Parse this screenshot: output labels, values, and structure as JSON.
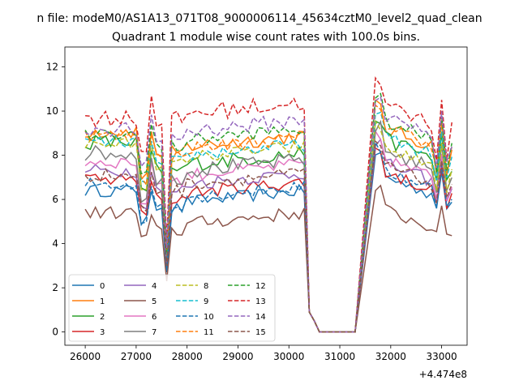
{
  "figure": {
    "suptitle": "n file: modeM0/AS1A13_071T08_9000006114_45634cztM0_level2_quad_clean",
    "title": "Quadrant 1 module wise count rates with 100.0s bins.",
    "offset_text": "+4.474e8"
  },
  "chart_data": {
    "type": "line",
    "title": "Quadrant 1 module wise count rates with 100.0s bins.",
    "xlabel": "",
    "ylabel": "",
    "x_offset": 447400000,
    "xlim": [
      25600,
      33500
    ],
    "ylim": [
      -0.6,
      12.9
    ],
    "xticks": [
      26000,
      27000,
      28000,
      29000,
      30000,
      31000,
      32000,
      33000
    ],
    "yticks": [
      0,
      2,
      4,
      6,
      8,
      10,
      12
    ],
    "legend": {
      "placement": "lower-left",
      "columns": 4
    },
    "grid": false,
    "gap": {
      "start": 30300,
      "end": 31700,
      "first_low_x": 30400,
      "first_low_value": 0.9,
      "second_low_x": 30500,
      "second_low_value": 0.5,
      "zero_start": 30600,
      "zero_end": 31300,
      "rise_x": 31700,
      "rise_x2": 31800
    },
    "x_segments": [
      {
        "start": 26000,
        "end": 30300,
        "step": 100
      },
      {
        "start": 31700,
        "end": 33200,
        "step": 100
      }
    ],
    "dip": {
      "x": 27600
    },
    "series": [
      {
        "name": "0",
        "color": "#1f77b4",
        "dash": "solid",
        "level1": 6.4,
        "level2": 5.9,
        "level3": 7.1,
        "dip_value": 2.7,
        "noise": 0.28
      },
      {
        "name": "1",
        "color": "#ff7f0e",
        "dash": "solid",
        "level1": 9.1,
        "level2": 8.4,
        "level3": 9.3,
        "dip_value": 3.6,
        "noise": 0.35
      },
      {
        "name": "2",
        "color": "#2ca02c",
        "dash": "solid",
        "level1": 8.6,
        "level2": 7.6,
        "level3": 8.8,
        "dip_value": 3.4,
        "noise": 0.35
      },
      {
        "name": "3",
        "color": "#d62728",
        "dash": "solid",
        "level1": 6.9,
        "level2": 6.3,
        "level3": 7.3,
        "dip_value": 3.0,
        "noise": 0.3
      },
      {
        "name": "4",
        "color": "#9467bd",
        "dash": "solid",
        "level1": 7.3,
        "level2": 6.7,
        "level3": 7.7,
        "dip_value": 3.1,
        "noise": 0.3
      },
      {
        "name": "5",
        "color": "#8c564b",
        "dash": "solid",
        "level1": 5.4,
        "level2": 4.9,
        "level3": 5.6,
        "dip_value": 2.3,
        "noise": 0.3
      },
      {
        "name": "6",
        "color": "#e377c2",
        "dash": "solid",
        "level1": 7.7,
        "level2": 7.1,
        "level3": 7.9,
        "dip_value": 3.2,
        "noise": 0.3
      },
      {
        "name": "7",
        "color": "#7f7f7f",
        "dash": "solid",
        "level1": 8.1,
        "level2": 7.3,
        "level3": 8.3,
        "dip_value": 3.3,
        "noise": 0.35
      },
      {
        "name": "8",
        "color": "#bcbd22",
        "dash": "dashed",
        "level1": 8.5,
        "level2": 7.9,
        "level3": 8.4,
        "dip_value": 3.5,
        "noise": 0.3
      },
      {
        "name": "9",
        "color": "#17becf",
        "dash": "dashed",
        "level1": 8.6,
        "level2": 8.0,
        "level3": 8.9,
        "dip_value": 3.5,
        "noise": 0.3
      },
      {
        "name": "10",
        "color": "#1f77b4",
        "dash": "dashed",
        "level1": 6.7,
        "level2": 6.1,
        "level3": 7.4,
        "dip_value": 2.8,
        "noise": 0.3
      },
      {
        "name": "11",
        "color": "#ff7f0e",
        "dash": "dashed",
        "level1": 8.9,
        "level2": 8.3,
        "level3": 9.4,
        "dip_value": 3.6,
        "noise": 0.3
      },
      {
        "name": "12",
        "color": "#2ca02c",
        "dash": "dashed",
        "level1": 8.9,
        "level2": 8.7,
        "level3": 9.6,
        "dip_value": 3.6,
        "noise": 0.3
      },
      {
        "name": "13",
        "color": "#d62728",
        "dash": "dashed",
        "level1": 9.7,
        "level2": 9.9,
        "level3": 10.3,
        "dip_value": 4.1,
        "noise": 0.4
      },
      {
        "name": "14",
        "color": "#9467bd",
        "dash": "dashed",
        "level1": 9.2,
        "level2": 9.1,
        "level3": 9.8,
        "dip_value": 3.8,
        "noise": 0.35
      },
      {
        "name": "15",
        "color": "#8c564b",
        "dash": "dashed",
        "level1": 7.1,
        "level2": 6.7,
        "level3": 7.6,
        "dip_value": 3.0,
        "noise": 0.3
      }
    ]
  }
}
